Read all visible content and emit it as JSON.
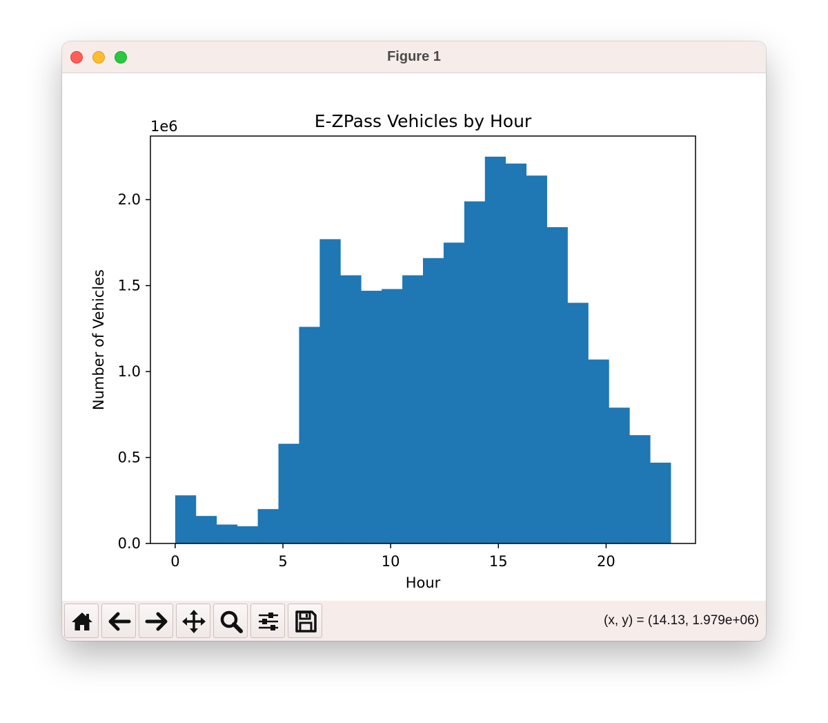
{
  "window": {
    "title": "Figure 1"
  },
  "toolbar": {
    "buttons": [
      {
        "name": "home",
        "icon": "home-icon"
      },
      {
        "name": "back",
        "icon": "arrow-left-icon"
      },
      {
        "name": "forward",
        "icon": "arrow-right-icon"
      },
      {
        "name": "pan",
        "icon": "move-icon"
      },
      {
        "name": "zoom",
        "icon": "search-icon"
      },
      {
        "name": "configure-subplots",
        "icon": "sliders-icon"
      },
      {
        "name": "save",
        "icon": "save-icon"
      }
    ],
    "coords_text": "(x, y) = (14.13, 1.979e+06)"
  },
  "chart_data": {
    "type": "bar",
    "title": "E-ZPass Vehicles by Hour",
    "xlabel": "Hour",
    "ylabel": "Number of Vehicles",
    "offset_text": "1e6",
    "bar_color": "#1f77b4",
    "xlim": [
      -1.15,
      24.15
    ],
    "ylim": [
      0,
      2.37
    ],
    "y_scale_multiplier": 1000000,
    "x_ticks": [
      0,
      5,
      10,
      15,
      20
    ],
    "y_ticks": [
      0.0,
      0.5,
      1.0,
      1.5,
      2.0
    ],
    "y_tick_labels": [
      "0.0",
      "0.5",
      "1.0",
      "1.5",
      "2.0"
    ],
    "bin_edges": [
      0,
      0.958,
      1.917,
      2.875,
      3.833,
      4.792,
      5.75,
      6.708,
      7.667,
      8.625,
      9.583,
      10.542,
      11.5,
      12.458,
      13.417,
      14.375,
      15.333,
      16.292,
      17.25,
      18.208,
      19.167,
      20.125,
      21.083,
      22.042,
      23.0
    ],
    "values": [
      0.28,
      0.16,
      0.11,
      0.1,
      0.2,
      0.58,
      1.26,
      1.77,
      1.56,
      1.47,
      1.48,
      1.56,
      1.66,
      1.75,
      1.99,
      2.25,
      2.21,
      2.14,
      1.84,
      1.4,
      1.07,
      0.79,
      0.63,
      0.47
    ],
    "grid": false,
    "legend": false
  }
}
